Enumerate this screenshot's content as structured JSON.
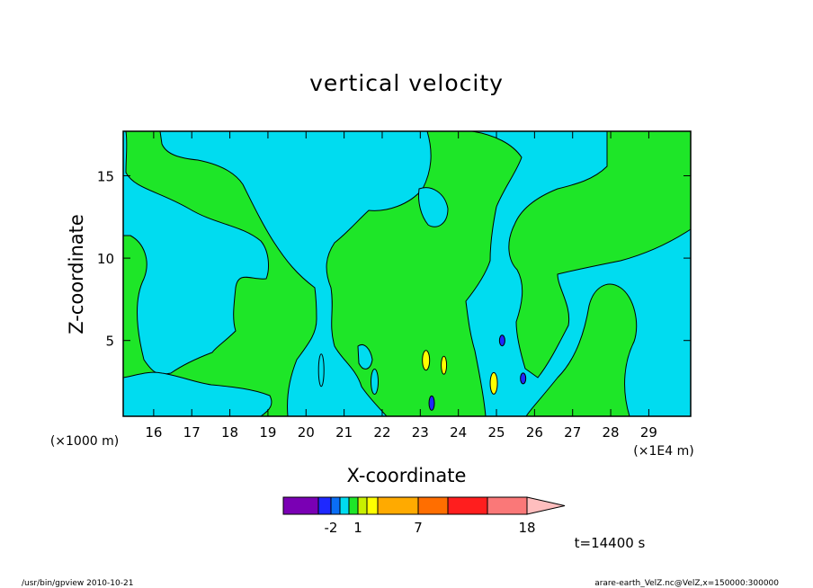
{
  "chart_data": {
    "type": "heatmap",
    "title": "vertical velocity",
    "xlabel": "X-coordinate",
    "ylabel": "Z-coordinate",
    "x_unit_left": "(×1000 m)",
    "x_unit_right": "(×1E4 m)",
    "xlim": [
      15.2,
      30.1
    ],
    "ylim": [
      0.4,
      17.7
    ],
    "x_ticks": [
      16,
      17,
      18,
      19,
      20,
      21,
      22,
      23,
      24,
      25,
      26,
      27,
      28,
      29
    ],
    "y_ticks": [
      5,
      10,
      15
    ],
    "colorbar": {
      "colors": [
        "#7a00b4",
        "#1e28ff",
        "#0a6ef5",
        "#00dcf0",
        "#1ee628",
        "#c8f000",
        "#ffff00",
        "#ffaa00",
        "#ff6e00",
        "#ff1e1e",
        "#fa7878",
        "#ffbebe"
      ],
      "labels": [
        {
          "text": "-2",
          "boundary": 2
        },
        {
          "text": "1",
          "boundary": 5
        },
        {
          "text": "7",
          "boundary": 8
        },
        {
          "text": "18",
          "boundary": 11
        }
      ]
    },
    "fields": {
      "background": "#1ee628",
      "low": "#00dcf0",
      "strong_up": "#ffff00",
      "strong_down": "#1e28ff"
    },
    "time_label": "t=14400 s"
  },
  "footer": {
    "left": "/usr/bin/gpview   2010-10-21",
    "right": "arare-earth_VelZ.nc@VelZ,x=150000:300000"
  }
}
